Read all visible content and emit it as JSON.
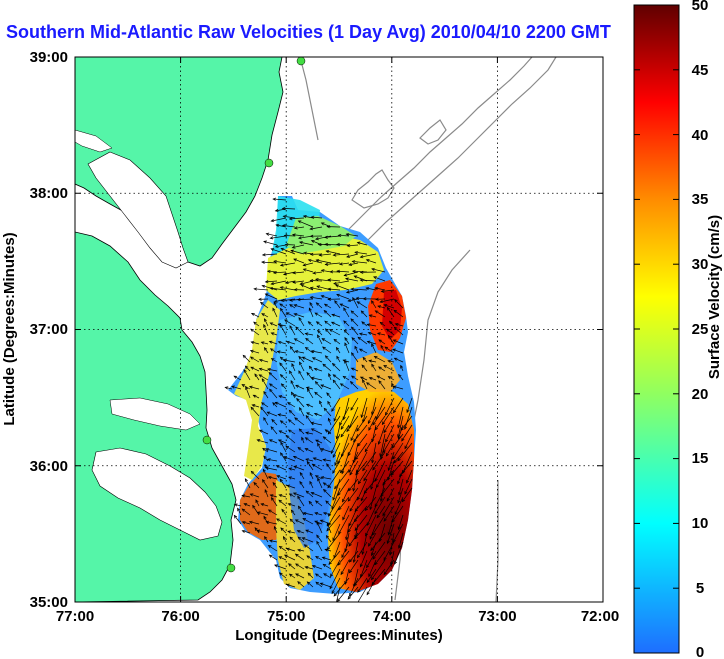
{
  "title": "Southern Mid-Atlantic Raw Velocities (1 Day Avg) 2010/04/10 2200 GMT",
  "x_axis": {
    "label": "Longitude (Degrees:Minutes)",
    "ticks": [
      "77:00",
      "76:00",
      "75:00",
      "74:00",
      "73:00",
      "72:00"
    ]
  },
  "y_axis": {
    "label": "Latitude (Degrees:Minutes)",
    "ticks": [
      "39:00",
      "38:00",
      "37:00",
      "36:00",
      "35:00"
    ]
  },
  "colorbar": {
    "label": "Surface Velocity (cm/s)",
    "ticks": [
      "50",
      "45",
      "40",
      "35",
      "30",
      "25",
      "20",
      "15",
      "10",
      "5",
      "0"
    ],
    "min": 0,
    "max": 50
  },
  "map": {
    "lon_range": [
      -77,
      -72
    ],
    "lat_range": [
      35,
      39
    ],
    "grid": "dotted",
    "land_color": "#55f5a8",
    "water_color": "#ffffff",
    "isobath_color": "#8a8a8a",
    "station_color": "#44dd44"
  }
}
